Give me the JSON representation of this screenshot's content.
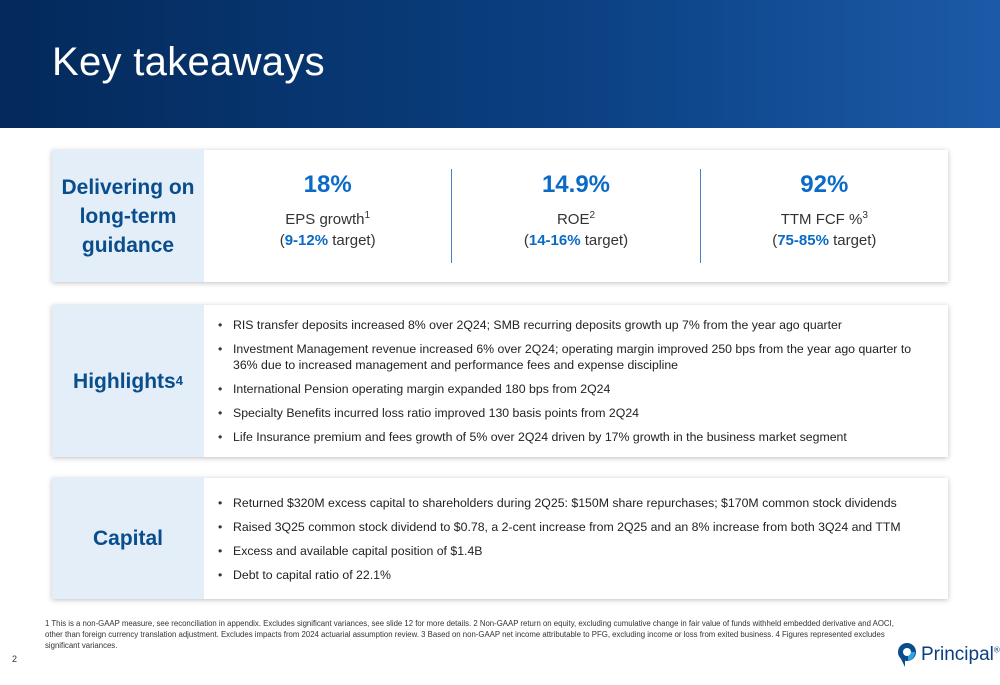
{
  "header": {
    "title": "Key takeaways"
  },
  "guidance": {
    "label": "Delivering on long-term guidance",
    "metrics": [
      {
        "value": "18%",
        "label": "EPS growth",
        "footnote": "1",
        "open": "(",
        "range": "9-12%",
        "target_suffix": " target)"
      },
      {
        "value": "14.9%",
        "label": "ROE",
        "footnote": "2",
        "open": "(",
        "range": "14-16%",
        "target_suffix": " target)"
      },
      {
        "value": "92%",
        "label": "TTM FCF %",
        "footnote": "3",
        "open": "(",
        "range": "75-85%",
        "target_suffix": " target)"
      }
    ]
  },
  "highlights": {
    "label": "Highlights",
    "label_footnote": "4",
    "items": [
      "RIS transfer deposits increased 8% over 2Q24; SMB recurring deposits growth up 7% from the year ago quarter",
      "Investment Management revenue increased 6% over 2Q24; operating margin improved 250 bps from the year ago quarter to 36% due to increased management and performance fees and expense discipline",
      "International Pension operating margin expanded 180 bps from 2Q24",
      "Specialty Benefits incurred loss ratio improved 130 basis points from 2Q24",
      "Life Insurance premium and fees growth of 5% over 2Q24 driven by 17% growth in the business market segment"
    ]
  },
  "capital": {
    "label": "Capital",
    "items": [
      "Returned $320M excess capital to shareholders during 2Q25: $150M share repurchases; $170M common stock dividends",
      "Raised 3Q25 common stock dividend to $0.78, a 2-cent increase from 2Q25 and an 8% increase from both 3Q24 and TTM",
      "Excess and available capital position of $1.4B",
      "Debt to capital ratio of 22.1%"
    ]
  },
  "footnote": "1 This is a non-GAAP measure, see reconciliation in appendix. Excludes significant variances, see slide 12 for more details. 2 Non-GAAP return on equity, excluding cumulative change in fair value of funds withheld embedded derivative and AOCI, other than foreign currency translation adjustment. Excludes impacts from 2024 actuarial assumption review. 3 Based on non-GAAP net income attributable to PFG, excluding income or loss from exited business. 4 Figures represented excludes significant variances.",
  "page_number": "2",
  "logo": {
    "text": "Principal",
    "mark": "®",
    "icon": "principal-logo-icon",
    "color": "#0a3f80"
  },
  "colors": {
    "header": "#04295a",
    "accent": "#0a6ac6",
    "label_bg": "#e3eef8"
  }
}
